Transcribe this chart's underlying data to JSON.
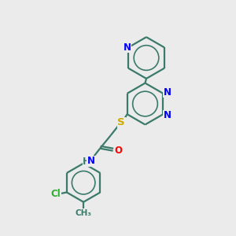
{
  "bg_color": "#ebebeb",
  "bond_color": "#3a7a6a",
  "atom_colors": {
    "N": "#0000ff",
    "O": "#ff0000",
    "S": "#ccaa00",
    "Cl": "#33aa33",
    "C": "#3a7a6a",
    "H": "#3a7a6a"
  },
  "line_width": 1.6,
  "font_size": 8.5,
  "fig_size": [
    3.0,
    3.0
  ],
  "dpi": 100
}
